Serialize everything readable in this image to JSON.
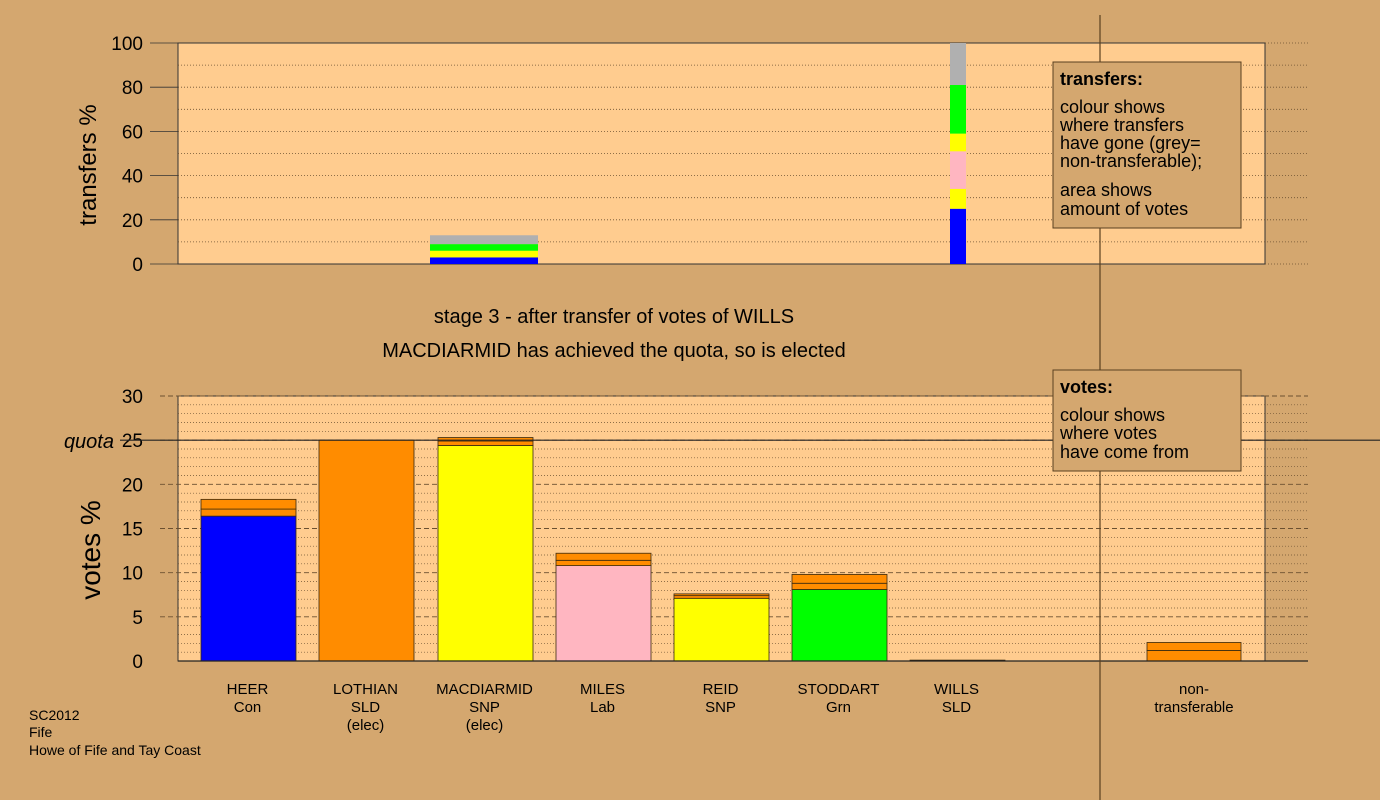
{
  "footer": {
    "line1": "SC2012",
    "line2": "Fife",
    "line3": "Howe of Fife and Tay Coast"
  },
  "titles": {
    "stage": "stage 3 - after transfer of votes of WILLS",
    "status": "MACDIARMID has achieved the quota, so is elected"
  },
  "legends": {
    "transfers": {
      "heading": "transfers:",
      "lines": [
        "colour shows",
        "where transfers",
        "have gone (grey=",
        "non-transferable);",
        "area shows",
        "amount of votes"
      ]
    },
    "votes": {
      "heading": "votes:",
      "lines": [
        "colour shows",
        "where votes",
        "have come from"
      ]
    }
  },
  "colors": {
    "background": "#d4a76f",
    "plot_background": "#ffcc8f",
    "Con": "#0000ff",
    "SLD": "#ff8c00",
    "SNP": "#ffff00",
    "Lab": "#ffb6c1",
    "Grn": "#00ff00",
    "nontransferable": "#b0b0b0"
  },
  "chart_data": [
    {
      "type": "bar",
      "ylabel": "transfers %",
      "ylim": [
        0,
        100
      ],
      "yticks": [
        0,
        20,
        40,
        60,
        80,
        100
      ],
      "grid": true,
      "transfer_columns": [
        {
          "column": "LOTHIAN",
          "segments": [
            {
              "color": "Con",
              "value": 3
            },
            {
              "color": "SNP",
              "value": 3
            },
            {
              "color": "Grn",
              "value": 3
            },
            {
              "color": "nontransferable",
              "value": 4
            }
          ]
        },
        {
          "column": "WILLS",
          "segments": [
            {
              "color": "Con",
              "value": 25
            },
            {
              "color": "SNP",
              "value": 9
            },
            {
              "color": "Lab",
              "value": 17
            },
            {
              "color": "SNP",
              "value": 8
            },
            {
              "color": "Grn",
              "value": 22
            },
            {
              "color": "nontransferable",
              "value": 19
            }
          ]
        }
      ]
    },
    {
      "type": "bar",
      "ylabel": "votes %",
      "ylim": [
        0,
        30
      ],
      "yticks": [
        0,
        5,
        10,
        15,
        20,
        25,
        30
      ],
      "quota": 25,
      "quota_label": "quota",
      "grid": true,
      "categories": [
        {
          "name": "HEER",
          "party": "Con",
          "note": "",
          "color": "Con",
          "segments": [
            {
              "color": "Con",
              "value": 16.4
            },
            {
              "color": "SLD",
              "value": 0.8
            },
            {
              "color": "SLD",
              "value": 1.1
            }
          ]
        },
        {
          "name": "LOTHIAN",
          "party": "SLD",
          "note": "(elec)",
          "color": "SLD",
          "segments": [
            {
              "color": "SLD",
              "value": 25.0
            }
          ]
        },
        {
          "name": "MACDIARMID",
          "party": "SNP",
          "note": "(elec)",
          "color": "SNP",
          "segments": [
            {
              "color": "SNP",
              "value": 24.4
            },
            {
              "color": "SLD",
              "value": 0.5
            },
            {
              "color": "SLD",
              "value": 0.4
            }
          ]
        },
        {
          "name": "MILES",
          "party": "Lab",
          "note": "",
          "color": "Lab",
          "segments": [
            {
              "color": "Lab",
              "value": 10.8
            },
            {
              "color": "SLD",
              "value": 0.6
            },
            {
              "color": "SLD",
              "value": 0.8
            }
          ]
        },
        {
          "name": "REID",
          "party": "SNP",
          "note": "",
          "color": "SNP",
          "segments": [
            {
              "color": "SNP",
              "value": 7.1
            },
            {
              "color": "SLD",
              "value": 0.3
            },
            {
              "color": "SLD",
              "value": 0.2
            }
          ]
        },
        {
          "name": "STODDART",
          "party": "Grn",
          "note": "",
          "color": "Grn",
          "segments": [
            {
              "color": "Grn",
              "value": 8.1
            },
            {
              "color": "SLD",
              "value": 0.7
            },
            {
              "color": "SLD",
              "value": 1.0
            }
          ]
        },
        {
          "name": "WILLS",
          "party": "SLD",
          "note": "",
          "color": "SLD",
          "segments": [
            {
              "color": "SLD",
              "value": 0.1
            }
          ]
        }
      ],
      "nontransferable": {
        "label_line1": "non-",
        "label_line2": "transferable",
        "segments": [
          {
            "color": "SLD",
            "value": 1.2
          },
          {
            "color": "SLD",
            "value": 0.9
          }
        ]
      }
    }
  ]
}
